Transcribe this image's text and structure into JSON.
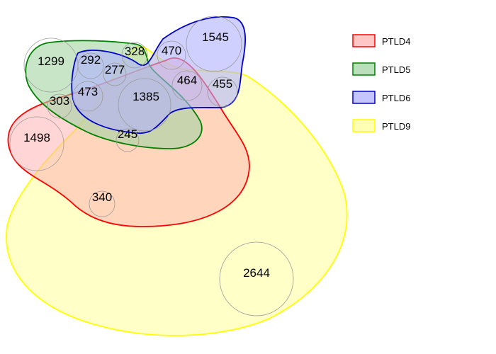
{
  "sets": [
    {
      "key": "ptld4",
      "label": "PTLD4",
      "stroke": "#ff0000",
      "fill": "#ffb3b3"
    },
    {
      "key": "ptld5",
      "label": "PTLD5",
      "stroke": "#008000",
      "fill": "#a3d4a3"
    },
    {
      "key": "ptld6",
      "label": "PTLD6",
      "stroke": "#0000cc",
      "fill": "#b0b0ff"
    },
    {
      "key": "ptld9",
      "label": "PTLD9",
      "stroke": "#ffff00",
      "fill": "#ffff99"
    }
  ],
  "regions": [
    {
      "key": "ptld5-only",
      "value": "1299"
    },
    {
      "key": "ptld6-only",
      "value": "1545"
    },
    {
      "key": "ptld4-only",
      "value": "1498"
    },
    {
      "key": "ptld9-only",
      "value": "2644"
    },
    {
      "key": "ptld5-ptld6",
      "value": "292"
    },
    {
      "key": "ptld5-ptld9",
      "value": "328"
    },
    {
      "key": "ptld4-ptld6",
      "value": "470"
    },
    {
      "key": "ptld5-ptld6-ptld9",
      "value": "277"
    },
    {
      "key": "ptld4-ptld5-ptld6",
      "value": "473"
    },
    {
      "key": "ptld4-ptld5",
      "value": "303"
    },
    {
      "key": "all-four",
      "value": "1385"
    },
    {
      "key": "ptld4-ptld6-ptld9",
      "value": "464"
    },
    {
      "key": "ptld6-ptld9",
      "value": "455"
    },
    {
      "key": "ptld4-ptld5-ptld9",
      "value": "245"
    },
    {
      "key": "ptld4-ptld9",
      "value": "340"
    }
  ]
}
